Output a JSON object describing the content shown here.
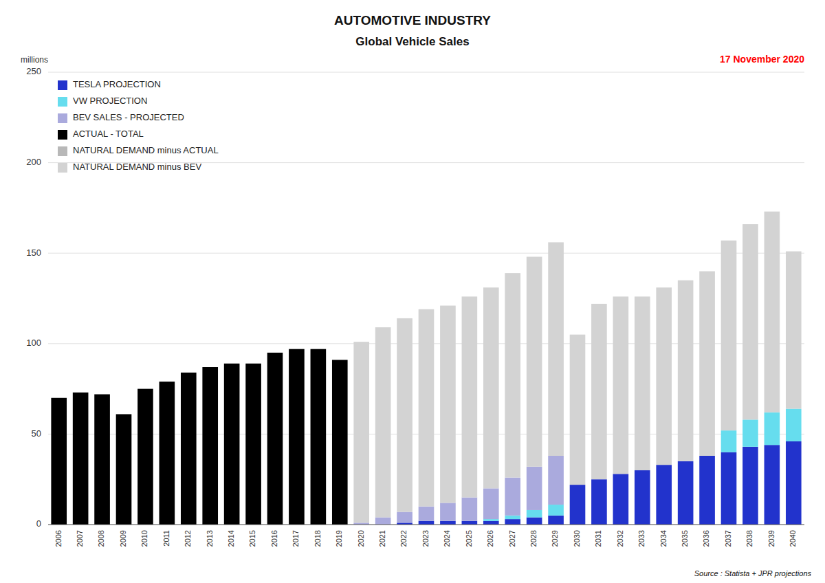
{
  "chart_data": {
    "type": "bar",
    "stacked": true,
    "title": "AUTOMOTIVE INDUSTRY",
    "subtitle": "Global Vehicle Sales",
    "y_label": "millions",
    "annotations": [
      {
        "text": "17 November 2020",
        "color": "red"
      },
      {
        "text": "Source : Statista + JPR projections"
      }
    ],
    "categories": [
      2006,
      2007,
      2008,
      2009,
      2010,
      2011,
      2012,
      2013,
      2014,
      2015,
      2016,
      2017,
      2018,
      2019,
      2020,
      2021,
      2022,
      2023,
      2024,
      2025,
      2026,
      2027,
      2028,
      2029,
      2030,
      2031,
      2032,
      2033,
      2034,
      2035,
      2036,
      2037,
      2038,
      2039,
      2040
    ],
    "series": [
      {
        "name": "TESLA PROJECTION",
        "color": "#2233cc",
        "values": [
          0,
          0,
          0,
          0,
          0,
          0,
          0,
          0,
          0,
          0,
          0,
          0,
          0,
          0,
          0,
          0,
          1,
          2,
          2,
          2,
          2,
          3,
          4,
          5,
          22,
          25,
          28,
          30,
          33,
          35,
          38,
          40,
          43,
          44,
          46
        ]
      },
      {
        "name": "VW PROJECTION",
        "color": "#66ddee",
        "values": [
          0,
          0,
          0,
          0,
          0,
          0,
          0,
          0,
          0,
          0,
          0,
          0,
          0,
          0,
          0,
          0,
          0,
          0,
          0,
          0,
          1,
          2,
          4,
          6,
          0,
          0,
          0,
          0,
          0,
          0,
          0,
          12,
          15,
          18,
          18
        ]
      },
      {
        "name": "BEV SALES - PROJECTED",
        "color": "#aaaadd",
        "values": [
          0,
          0,
          0,
          0,
          0,
          0,
          0,
          0,
          0,
          0,
          0,
          0,
          0,
          0,
          1,
          4,
          6,
          8,
          10,
          13,
          17,
          21,
          24,
          27,
          0,
          0,
          0,
          0,
          0,
          0,
          0,
          0,
          0,
          0,
          0
        ]
      },
      {
        "name": "ACTUAL - TOTAL",
        "color": "#000000",
        "values": [
          70,
          73,
          72,
          61,
          75,
          79,
          84,
          87,
          89,
          89,
          95,
          97,
          97,
          91,
          0,
          0,
          0,
          0,
          0,
          0,
          0,
          0,
          0,
          0,
          0,
          0,
          0,
          0,
          0,
          0,
          0,
          0,
          0,
          0,
          0
        ]
      },
      {
        "name": "NATURAL DEMAND minus ACTUAL",
        "color": "#b8b8b8",
        "values": [
          0,
          0,
          0,
          0,
          0,
          0,
          0,
          0,
          0,
          0,
          0,
          0,
          0,
          0,
          0,
          0,
          0,
          0,
          0,
          0,
          0,
          0,
          0,
          0,
          0,
          0,
          0,
          0,
          0,
          0,
          0,
          0,
          0,
          0,
          0
        ]
      },
      {
        "name": "NATURAL DEMAND minus BEV",
        "color": "#d3d3d3",
        "values": [
          0,
          0,
          0,
          0,
          0,
          0,
          0,
          0,
          0,
          0,
          0,
          0,
          0,
          0,
          100,
          105,
          107,
          109,
          109,
          111,
          111,
          113,
          116,
          118,
          83,
          97,
          98,
          96,
          98,
          100,
          102,
          105,
          108,
          111,
          87
        ]
      }
    ],
    "ylim": [
      0,
      250
    ],
    "yticks": [
      0,
      50,
      100,
      150,
      200,
      250
    ],
    "grid": true,
    "legend": "upper-left"
  }
}
